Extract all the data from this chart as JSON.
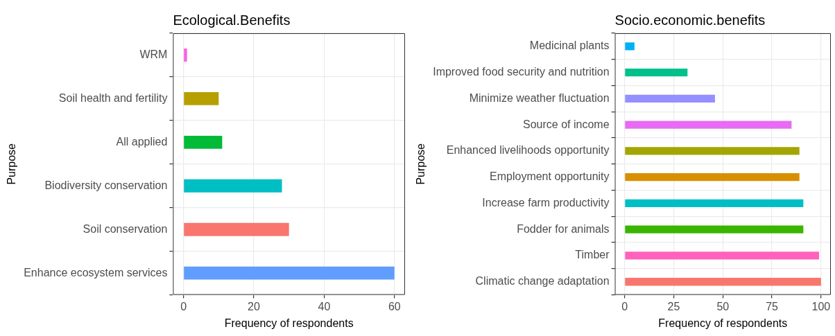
{
  "chart_data": [
    {
      "type": "bar",
      "orientation": "horizontal",
      "title": "Ecological.Benefits",
      "xlabel": "Frequency of respondents",
      "ylabel": "Purpose",
      "categories": [
        "WRM",
        "Soil health and fertility",
        "All applied",
        "Biodiversity conservation",
        "Soil conservation",
        "Enhance ecosystem services"
      ],
      "values": [
        1,
        10,
        11,
        28,
        30,
        60
      ],
      "colors": [
        "#f564e3",
        "#b79f00",
        "#00ba38",
        "#00bfc4",
        "#f8766d",
        "#619cff"
      ],
      "xlim": [
        -3,
        63
      ],
      "xticks": [
        0,
        20,
        40,
        60
      ],
      "grid": true,
      "legend": false
    },
    {
      "type": "bar",
      "orientation": "horizontal",
      "title": "Socio.economic.benefits",
      "xlabel": "Frequency of respondents",
      "ylabel": "Purpose",
      "categories": [
        "Medicinal plants",
        "Improved food security and nutrition",
        "Minimize weather fluctuation",
        "Source of income",
        "Enhanced livelihoods opportunity",
        "Employment opportunity",
        "Increase farm productivity",
        "Fodder for animals",
        "Timber",
        "Climatic change adaptation"
      ],
      "values": [
        5,
        32,
        46,
        85,
        89,
        89,
        91,
        91,
        99,
        100
      ],
      "colors": [
        "#00b0f6",
        "#00c08b",
        "#9590ff",
        "#e76bf3",
        "#a3a500",
        "#d89000",
        "#00bfc4",
        "#39b600",
        "#ff62bc",
        "#f8766d"
      ],
      "xlim": [
        -5,
        105
      ],
      "xticks": [
        0,
        25,
        50,
        75,
        100
      ],
      "grid": true,
      "legend": false
    }
  ]
}
